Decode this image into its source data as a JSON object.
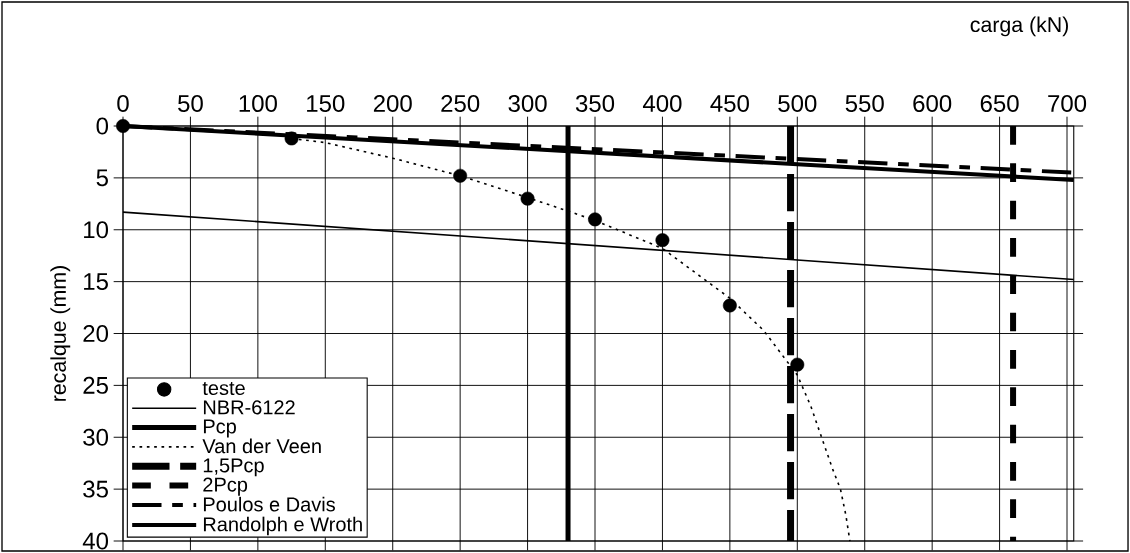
{
  "chart_data": {
    "type": "line",
    "xlabel": "carga (kN)",
    "ylabel": "recalque (mm)",
    "xlim": [
      0,
      705
    ],
    "ylim": [
      40,
      0
    ],
    "xticks": [
      0,
      50,
      100,
      150,
      200,
      250,
      300,
      350,
      400,
      450,
      500,
      550,
      600,
      650,
      700
    ],
    "yticks": [
      0,
      5,
      10,
      15,
      20,
      25,
      30,
      35,
      40
    ],
    "grid": true,
    "legend": "bottom left",
    "series": [
      {
        "name": "teste",
        "type": "scatter",
        "color": "#000000",
        "x": [
          0,
          125,
          250,
          300,
          350,
          400,
          450,
          500
        ],
        "values": [
          0,
          1.2,
          4.8,
          7,
          9,
          11,
          17.3,
          23
        ]
      },
      {
        "name": "NBR-6122",
        "line_style": "solid",
        "color": "#000000",
        "x": [
          0,
          705
        ],
        "values": [
          8.3,
          14.8
        ]
      },
      {
        "name": "Pcp",
        "line_style": "solid",
        "color": "#000000",
        "x": [
          330,
          330
        ],
        "values": [
          0,
          40
        ]
      },
      {
        "name": "Van der Veen",
        "line_style": "dotted",
        "color": "#000000",
        "x": [
          125,
          150,
          200,
          250,
          300,
          330,
          350,
          400,
          450,
          475,
          500,
          510,
          518,
          526,
          532,
          536,
          539
        ],
        "values": [
          1.2,
          1.6,
          3.1,
          4.8,
          6.9,
          8.2,
          9.1,
          11.8,
          16.6,
          19.7,
          24,
          27,
          30,
          33,
          35,
          37.5,
          40
        ]
      },
      {
        "name": "1,5Pcp",
        "line_style": "dashed",
        "color": "#000000",
        "x": [
          495,
          495
        ],
        "values": [
          0,
          40
        ]
      },
      {
        "name": "2Pcp",
        "line_style": "dashed",
        "color": "#000000",
        "x": [
          660,
          660
        ],
        "values": [
          0,
          40
        ]
      },
      {
        "name": "Poulos e Davis",
        "line_style": "dashed",
        "color": "#000000",
        "x": [
          0,
          705
        ],
        "values": [
          0,
          4.5
        ]
      },
      {
        "name": "Randolph e Wroth",
        "line_style": "solid",
        "color": "#000000",
        "x": [
          0,
          705
        ],
        "values": [
          0,
          5.2
        ]
      }
    ]
  }
}
